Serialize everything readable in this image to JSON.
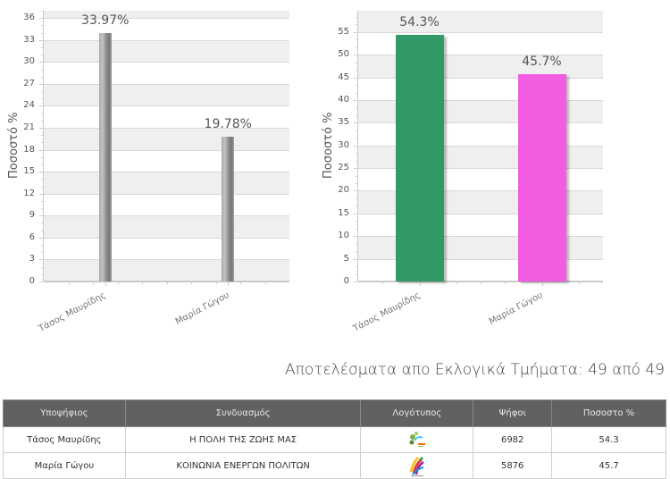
{
  "chart_data": [
    {
      "type": "bar",
      "title": "",
      "xlabel": "",
      "ylabel": "Ποσοστό %",
      "categories": [
        "Τάσος Μαυρίδης",
        "Μαρία Γώγου"
      ],
      "values": [
        33.97,
        19.78
      ],
      "value_labels": [
        "33.97%",
        "19.78%"
      ],
      "ylim": [
        0,
        37
      ],
      "yticks": [
        0,
        3,
        6,
        9,
        12,
        15,
        18,
        21,
        24,
        27,
        30,
        33,
        36
      ],
      "colors": [
        "#8f8f8f",
        "#8f8f8f"
      ],
      "grid": true,
      "legend": "none"
    },
    {
      "type": "bar",
      "title": "",
      "xlabel": "",
      "ylabel": "Ποσοστό %",
      "categories": [
        "Τάσος Μαυρίδης",
        "Μαρία Γώγου"
      ],
      "values": [
        54.3,
        45.7
      ],
      "value_labels": [
        "54.3%",
        "45.7%"
      ],
      "ylim": [
        0,
        59.7
      ],
      "yticks": [
        0,
        5,
        10,
        15,
        20,
        25,
        30,
        35,
        40,
        45,
        50,
        55
      ],
      "colors": [
        "#339966",
        "#f25ce0"
      ],
      "grid": true,
      "legend": "none"
    }
  ],
  "results_title": "Αποτελέσματα απο Εκλογικά Τμήματα: 49 από 49",
  "table": {
    "headers": [
      "Υποψήφιος",
      "Συνδυασμός",
      "Λογότυπος",
      "Ψήφοι",
      "Ποσοστο %"
    ],
    "rows": [
      {
        "candidate": "Τάσος Μαυρίδης",
        "party": "Η ΠΟΛΗ ΤΗΣ ΖΩΗΣ ΜΑΣ",
        "logo": "party-logo-green-icon",
        "votes": "6982",
        "percent": "54.3"
      },
      {
        "candidate": "Μαρία Γώγου",
        "party": "ΚΟΙΝΩΝΙΑ ΕΝΕΡΓΩΝ ΠΟΛΙΤΩΝ",
        "logo": "party-logo-color-ribbons-icon",
        "votes": "5876",
        "percent": "45.7"
      }
    ]
  }
}
